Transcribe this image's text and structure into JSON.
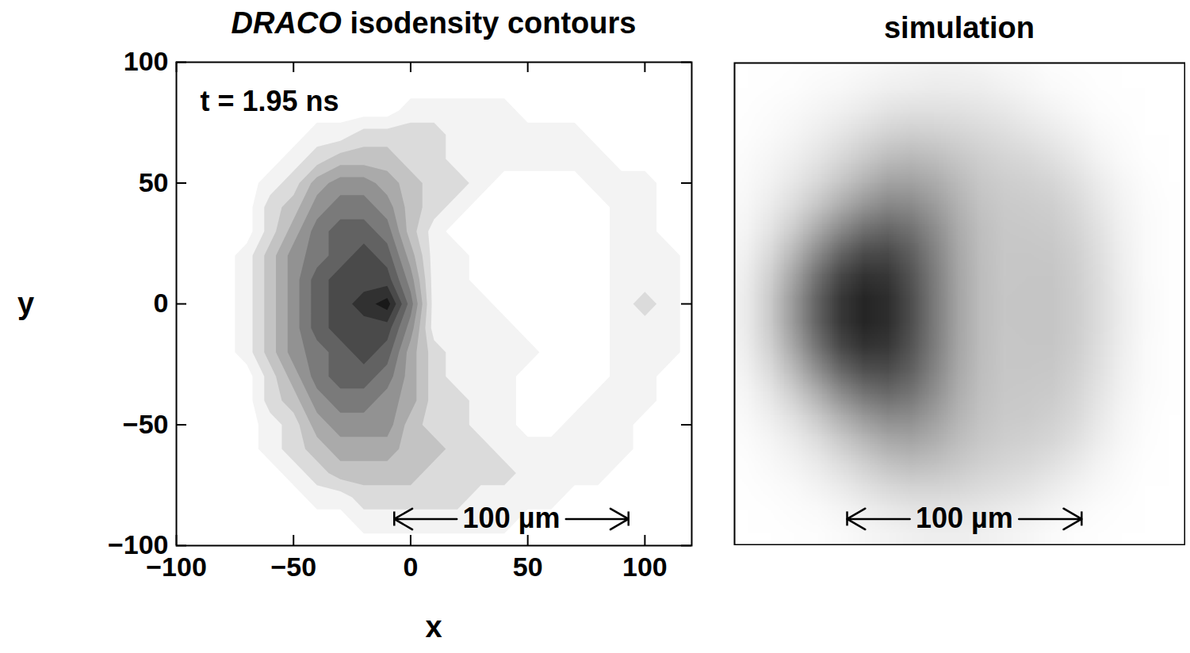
{
  "chart_data": [
    {
      "type": "contour",
      "title": "DRACO isodensity contours",
      "annotation": "t = 1.95 ns",
      "x_label": "x",
      "y_label": "y",
      "xlim": [
        -100,
        120
      ],
      "ylim": [
        -100,
        100
      ],
      "xticks": [
        -100,
        -50,
        0,
        50,
        100
      ],
      "yticks": [
        -100,
        -50,
        0,
        50,
        100
      ],
      "x": [
        -100,
        -90,
        -80,
        -70,
        -60,
        -50,
        -40,
        -30,
        -20,
        -10,
        0,
        10,
        20,
        30,
        40,
        50,
        60,
        70,
        80,
        90,
        100,
        110,
        120
      ],
      "y": [
        100,
        90,
        80,
        70,
        60,
        50,
        40,
        30,
        20,
        10,
        0,
        -10,
        -20,
        -30,
        -40,
        -50,
        -60,
        -70,
        -80,
        -90,
        -100
      ],
      "cells": [
        [
          0,
          0,
          0,
          0,
          0,
          0,
          0,
          0,
          0,
          0,
          0,
          0,
          0,
          0,
          0,
          0,
          0,
          0,
          0,
          0,
          0,
          0,
          0
        ],
        [
          0,
          0,
          0,
          0,
          0,
          0,
          0,
          0,
          0,
          0,
          0,
          0,
          0,
          0,
          0,
          0,
          0,
          0,
          0,
          0,
          0,
          0,
          0
        ],
        [
          0,
          0,
          0,
          0,
          0,
          0,
          0,
          0,
          0,
          0,
          1,
          1,
          1,
          1,
          1,
          0,
          0,
          0,
          0,
          0,
          0,
          0,
          0
        ],
        [
          0,
          0,
          0,
          0,
          0,
          0,
          1,
          1,
          2,
          2,
          2,
          2,
          1,
          1,
          1,
          1,
          1,
          1,
          0,
          0,
          0,
          0,
          0
        ],
        [
          0,
          0,
          0,
          0,
          0,
          1,
          2,
          3,
          3,
          3,
          2,
          2,
          1,
          1,
          1,
          1,
          1,
          1,
          1,
          0,
          0,
          0,
          0
        ],
        [
          0,
          0,
          0,
          0,
          1,
          2,
          4,
          5,
          5,
          4,
          3,
          2,
          2,
          1,
          0,
          0,
          0,
          0,
          1,
          1,
          1,
          0,
          0
        ],
        [
          0,
          0,
          0,
          0,
          2,
          3,
          5,
          6,
          6,
          5,
          3,
          2,
          1,
          0,
          0,
          0,
          0,
          0,
          0,
          1,
          1,
          0,
          0
        ],
        [
          0,
          0,
          0,
          0,
          2,
          4,
          6,
          7,
          7,
          6,
          3,
          1,
          0,
          0,
          0,
          0,
          0,
          0,
          0,
          1,
          1,
          0,
          0
        ],
        [
          0,
          0,
          0,
          1,
          3,
          5,
          6,
          7,
          8,
          7,
          4,
          1,
          1,
          0,
          0,
          0,
          0,
          0,
          0,
          1,
          1,
          1,
          0
        ],
        [
          0,
          0,
          0,
          1,
          3,
          5,
          7,
          8,
          8,
          8,
          5,
          1,
          1,
          0,
          0,
          0,
          0,
          0,
          0,
          1,
          1,
          1,
          0
        ],
        [
          0,
          0,
          0,
          1,
          3,
          5,
          7,
          8,
          9,
          10,
          6,
          1,
          1,
          1,
          0,
          0,
          0,
          0,
          0,
          1,
          2,
          1,
          0
        ],
        [
          0,
          0,
          0,
          1,
          3,
          5,
          7,
          8,
          8,
          8,
          5,
          1,
          1,
          1,
          1,
          0,
          0,
          0,
          0,
          1,
          1,
          1,
          0
        ],
        [
          0,
          0,
          0,
          1,
          3,
          5,
          6,
          7,
          8,
          7,
          4,
          2,
          1,
          1,
          1,
          1,
          0,
          0,
          0,
          1,
          1,
          1,
          0
        ],
        [
          0,
          0,
          0,
          0,
          2,
          4,
          6,
          7,
          7,
          6,
          4,
          2,
          1,
          1,
          1,
          0,
          0,
          0,
          0,
          1,
          1,
          0,
          0
        ],
        [
          0,
          0,
          0,
          0,
          2,
          3,
          5,
          6,
          6,
          5,
          4,
          2,
          2,
          1,
          1,
          0,
          0,
          0,
          1,
          1,
          1,
          0,
          0
        ],
        [
          0,
          0,
          0,
          0,
          1,
          2,
          4,
          5,
          5,
          5,
          3,
          2,
          2,
          1,
          1,
          0,
          0,
          1,
          1,
          1,
          0,
          0,
          0
        ],
        [
          0,
          0,
          0,
          0,
          1,
          2,
          3,
          4,
          4,
          4,
          3,
          3,
          2,
          2,
          1,
          1,
          1,
          1,
          1,
          1,
          0,
          0,
          0
        ],
        [
          0,
          0,
          0,
          0,
          0,
          1,
          2,
          3,
          3,
          3,
          3,
          2,
          2,
          2,
          2,
          1,
          1,
          1,
          1,
          0,
          0,
          0,
          0
        ],
        [
          0,
          0,
          0,
          0,
          0,
          0,
          1,
          1,
          2,
          2,
          2,
          2,
          2,
          1,
          1,
          1,
          1,
          0,
          0,
          0,
          0,
          0,
          0
        ],
        [
          0,
          0,
          0,
          0,
          0,
          0,
          0,
          0,
          1,
          1,
          1,
          1,
          1,
          1,
          1,
          0,
          0,
          0,
          0,
          0,
          0,
          0,
          0
        ],
        [
          0,
          0,
          0,
          0,
          0,
          0,
          0,
          0,
          0,
          0,
          0,
          0,
          0,
          0,
          0,
          0,
          0,
          0,
          0,
          0,
          0,
          0,
          0
        ]
      ],
      "scale_bar": {
        "label": "100 µm",
        "x": [
          -7,
          93
        ],
        "y": -89
      }
    },
    {
      "type": "image",
      "title": "simulation",
      "tick_labels": false,
      "xlim": [
        -95,
        97
      ],
      "ylim": [
        -105,
        100
      ],
      "x": [
        -100,
        -90,
        -80,
        -70,
        -60,
        -50,
        -40,
        -30,
        -20,
        -10,
        0,
        10,
        20,
        30,
        40,
        50,
        60,
        70,
        80,
        90
      ],
      "y": [
        100,
        90,
        80,
        70,
        60,
        50,
        40,
        30,
        20,
        10,
        0,
        -10,
        -20,
        -30,
        -40,
        -50,
        -60,
        -70,
        -80,
        -90,
        -100
      ],
      "cells": [
        [
          0,
          0,
          0,
          0,
          0,
          0,
          0,
          0,
          0,
          0,
          0,
          0,
          0,
          0,
          0,
          0,
          0,
          0,
          0,
          0
        ],
        [
          0,
          0,
          0,
          0,
          0,
          0,
          0,
          0,
          1,
          1,
          1,
          1,
          0,
          0,
          0,
          0,
          0,
          0,
          0,
          0
        ],
        [
          0,
          0,
          0,
          0,
          0,
          1,
          1,
          1,
          1,
          1,
          1,
          1,
          1,
          1,
          0,
          0,
          0,
          0,
          0,
          0
        ],
        [
          0,
          0,
          0,
          0,
          1,
          1,
          1,
          2,
          2,
          2,
          2,
          2,
          2,
          1,
          1,
          0,
          0,
          0,
          0,
          0
        ],
        [
          0,
          0,
          0,
          1,
          1,
          1,
          2,
          3,
          4,
          3,
          2,
          2,
          2,
          2,
          1,
          1,
          0,
          0,
          0,
          0
        ],
        [
          0,
          0,
          0,
          1,
          1,
          2,
          3,
          4,
          6,
          3,
          2,
          2,
          2,
          2,
          3,
          2,
          0,
          0,
          0,
          0
        ],
        [
          0,
          0,
          1,
          1,
          2,
          2,
          3,
          5,
          7,
          4,
          3,
          2,
          2,
          2,
          3,
          2,
          1,
          0,
          0,
          0
        ],
        [
          0,
          0,
          1,
          1,
          2,
          4,
          6,
          7,
          8,
          4,
          3,
          2,
          2,
          2,
          3,
          3,
          1,
          0,
          0,
          0
        ],
        [
          0,
          0,
          1,
          2,
          4,
          9,
          10,
          10,
          9,
          4,
          3,
          2,
          2,
          2,
          3,
          3,
          1,
          0,
          0,
          0
        ],
        [
          0,
          0,
          1,
          3,
          8,
          10,
          10,
          10,
          9,
          4,
          3,
          2,
          2,
          2,
          3,
          3,
          1,
          0,
          0,
          0
        ],
        [
          0,
          0,
          1,
          4,
          9,
          10,
          10,
          10,
          9,
          4,
          3,
          2,
          2,
          2,
          3,
          4,
          1,
          0,
          0,
          0
        ],
        [
          0,
          0,
          1,
          4,
          9,
          10,
          10,
          10,
          9,
          4,
          3,
          2,
          2,
          2,
          3,
          4,
          1,
          0,
          0,
          0
        ],
        [
          0,
          0,
          1,
          3,
          8,
          10,
          10,
          10,
          9,
          4,
          3,
          2,
          2,
          2,
          3,
          3,
          1,
          0,
          0,
          0
        ],
        [
          0,
          0,
          1,
          2,
          4,
          9,
          10,
          10,
          9,
          4,
          3,
          2,
          2,
          2,
          3,
          3,
          1,
          0,
          0,
          0
        ],
        [
          0,
          0,
          1,
          1,
          2,
          4,
          6,
          7,
          8,
          4,
          3,
          2,
          2,
          2,
          3,
          3,
          1,
          0,
          0,
          0
        ],
        [
          0,
          0,
          0,
          1,
          2,
          2,
          3,
          5,
          7,
          4,
          2,
          2,
          2,
          2,
          3,
          2,
          0,
          0,
          0,
          0
        ],
        [
          0,
          0,
          0,
          1,
          1,
          2,
          2,
          4,
          6,
          3,
          2,
          2,
          2,
          2,
          3,
          2,
          0,
          0,
          0,
          0
        ],
        [
          0,
          0,
          0,
          0,
          1,
          1,
          2,
          3,
          4,
          3,
          2,
          2,
          2,
          2,
          2,
          1,
          0,
          0,
          0,
          0
        ],
        [
          0,
          0,
          0,
          0,
          0,
          1,
          1,
          1,
          2,
          2,
          2,
          2,
          2,
          1,
          1,
          0,
          0,
          0,
          0,
          0
        ],
        [
          0,
          0,
          0,
          0,
          0,
          0,
          0,
          1,
          1,
          1,
          1,
          1,
          1,
          0,
          0,
          0,
          0,
          0,
          0,
          0
        ],
        [
          0,
          0,
          0,
          0,
          0,
          0,
          0,
          0,
          0,
          0,
          0,
          0,
          0,
          0,
          0,
          0,
          0,
          0,
          0,
          0
        ]
      ],
      "scale_bar": {
        "label": "100 µm",
        "x": [
          -47,
          53
        ],
        "y": -94
      }
    }
  ]
}
